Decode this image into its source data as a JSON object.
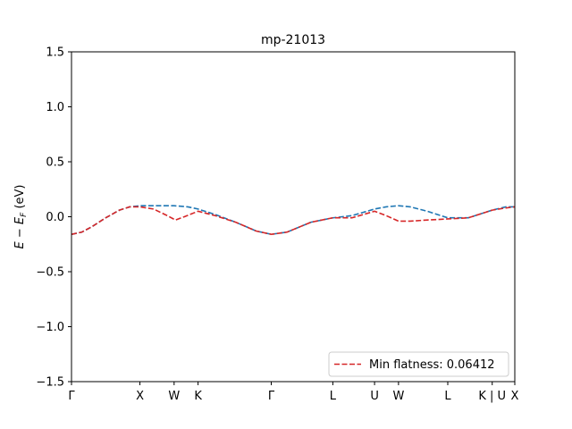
{
  "chart_data": {
    "type": "line",
    "title": "mp-21013",
    "xlabel": "",
    "ylabel": "E − E_F (eV)",
    "ylim": [
      -1.5,
      1.5
    ],
    "xlim": [
      0,
      6.48
    ],
    "grid": false,
    "legend_position": "lower-right",
    "x_ticks": [
      {
        "label": "Γ",
        "value": 0.0
      },
      {
        "label": "X",
        "value": 1.0
      },
      {
        "label": "W",
        "value": 1.5
      },
      {
        "label": "K",
        "value": 1.85
      },
      {
        "label": "Γ",
        "value": 2.92
      },
      {
        "label": "L",
        "value": 3.82
      },
      {
        "label": "U",
        "value": 4.43
      },
      {
        "label": "W",
        "value": 4.78
      },
      {
        "label": "L",
        "value": 5.5
      },
      {
        "label": "K | U",
        "value": 6.15
      },
      {
        "label": "X",
        "value": 6.48
      }
    ],
    "y_ticks": [
      {
        "label": "1.5",
        "value": 1.5
      },
      {
        "label": "1.0",
        "value": 1.0
      },
      {
        "label": "0.5",
        "value": 0.5
      },
      {
        "label": "0.0",
        "value": 0.0
      },
      {
        "label": "−0.5",
        "value": -0.5
      },
      {
        "label": "−1.0",
        "value": -1.0
      },
      {
        "label": "−1.5",
        "value": -1.5
      }
    ],
    "series": [
      {
        "color": "#1f77b4",
        "style": "dashed",
        "x": [
          0.0,
          0.15,
          0.3,
          0.5,
          0.7,
          0.85,
          1.0,
          1.2,
          1.5,
          1.7,
          1.85,
          2.1,
          2.4,
          2.7,
          2.92,
          3.15,
          3.5,
          3.82,
          4.1,
          4.43,
          4.6,
          4.78,
          4.95,
          5.2,
          5.5,
          5.8,
          6.15,
          6.35,
          6.48
        ],
        "y": [
          -0.16,
          -0.14,
          -0.09,
          -0.01,
          0.06,
          0.09,
          0.1,
          0.1,
          0.1,
          0.09,
          0.07,
          0.02,
          -0.05,
          -0.13,
          -0.16,
          -0.14,
          -0.05,
          -0.01,
          0.01,
          0.07,
          0.09,
          0.1,
          0.09,
          0.05,
          -0.01,
          -0.01,
          0.06,
          0.09,
          0.09
        ]
      },
      {
        "name": "Min flatness: 0.06412",
        "color": "#d62728",
        "style": "dashed",
        "x": [
          0.0,
          0.15,
          0.3,
          0.5,
          0.7,
          0.85,
          1.0,
          1.2,
          1.4,
          1.52,
          1.65,
          1.85,
          2.1,
          2.4,
          2.7,
          2.92,
          3.15,
          3.5,
          3.82,
          4.1,
          4.43,
          4.6,
          4.78,
          4.95,
          5.2,
          5.5,
          5.8,
          6.15,
          6.35,
          6.48
        ],
        "y": [
          -0.16,
          -0.14,
          -0.09,
          -0.01,
          0.06,
          0.09,
          0.09,
          0.07,
          0.01,
          -0.03,
          0.0,
          0.05,
          0.01,
          -0.05,
          -0.13,
          -0.16,
          -0.14,
          -0.05,
          -0.01,
          -0.01,
          0.05,
          0.01,
          -0.04,
          -0.04,
          -0.03,
          -0.02,
          -0.01,
          0.06,
          0.08,
          0.09
        ]
      }
    ]
  }
}
